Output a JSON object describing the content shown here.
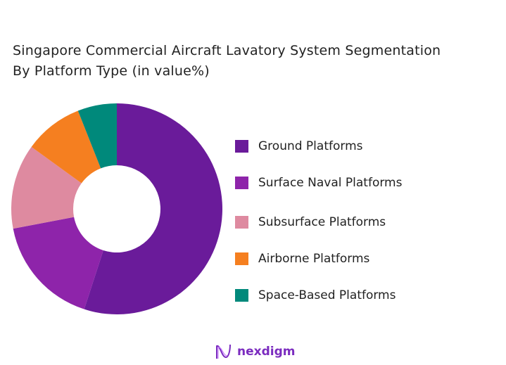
{
  "chart_data": {
    "type": "pie",
    "donut": true,
    "title": "Singapore Commercial Aircraft Lavatory System Segmentation By Platform Type (in value%)",
    "title_lines": [
      "Singapore Commercial Aircraft Lavatory System Segmentation",
      "By Platform Type (in value%)"
    ],
    "categories": [
      "Ground Platforms",
      "Surface Naval Platforms",
      "Subsurface Platforms",
      "Airborne Platforms",
      "Space-Based Platforms"
    ],
    "values": [
      55,
      17,
      13,
      9,
      6
    ],
    "colors": [
      "#6a1b9a",
      "#8e24aa",
      "#de8aa0",
      "#f57f20",
      "#00897b"
    ],
    "legend_position": "right"
  },
  "brand": {
    "name": "nexdigm"
  }
}
